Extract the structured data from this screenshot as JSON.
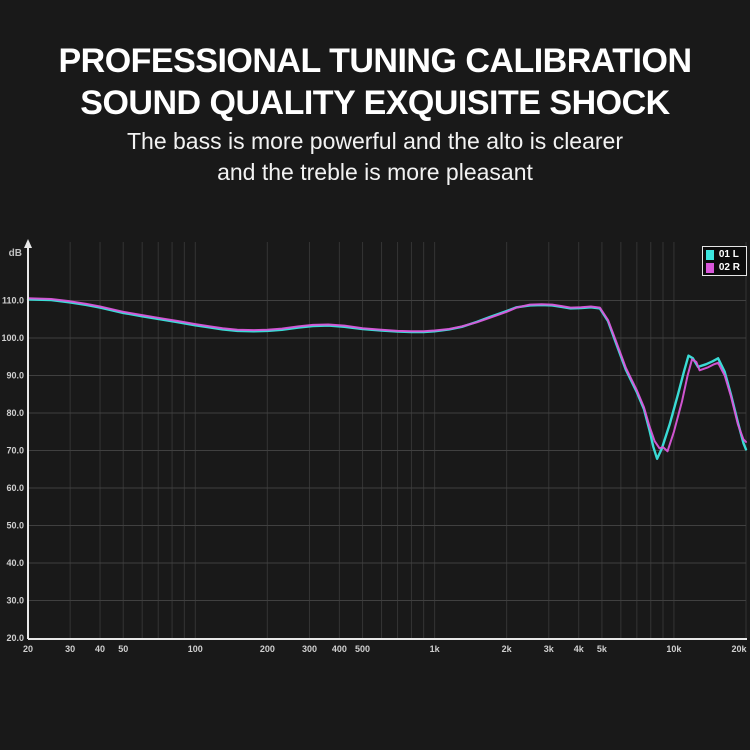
{
  "page": {
    "bg_color": "#191919",
    "title_line1": "PROFESSIONAL TUNING CALIBRATION",
    "title_line2": "SOUND QUALITY EXQUISITE SHOCK",
    "subtitle_line1": "The bass is more powerful and the alto is clearer",
    "subtitle_line2": "and the treble is more pleasant"
  },
  "chart_data": {
    "type": "line",
    "title": "",
    "y_axis_label": "dB",
    "x_scale": "log",
    "x_range": [
      20,
      20000
    ],
    "y_axis_range": [
      20,
      125
    ],
    "grid": true,
    "legend_position": "top-right",
    "axis_color": "#e8e8e8",
    "grid_color_h": "#404040",
    "grid_color_v": "#343434",
    "y_ticks": [
      {
        "value": 110,
        "label": "110.0"
      },
      {
        "value": 100,
        "label": "100.0"
      },
      {
        "value": 90,
        "label": "90.0"
      },
      {
        "value": 80,
        "label": "80.0"
      },
      {
        "value": 70,
        "label": "70.0"
      },
      {
        "value": 60,
        "label": "60.0"
      },
      {
        "value": 50,
        "label": "50.0"
      },
      {
        "value": 40,
        "label": "40.0"
      },
      {
        "value": 30,
        "label": "30.0"
      },
      {
        "value": 20,
        "label": "20.0"
      }
    ],
    "x_ticks": [
      {
        "value": 20,
        "label": "20"
      },
      {
        "value": 30,
        "label": "30"
      },
      {
        "value": 40,
        "label": "40"
      },
      {
        "value": 50,
        "label": "50"
      },
      {
        "value": 100,
        "label": "100"
      },
      {
        "value": 200,
        "label": "200"
      },
      {
        "value": 300,
        "label": "300"
      },
      {
        "value": 400,
        "label": "400"
      },
      {
        "value": 500,
        "label": "500"
      },
      {
        "value": 1000,
        "label": "1k"
      },
      {
        "value": 2000,
        "label": "2k"
      },
      {
        "value": 3000,
        "label": "3k"
      },
      {
        "value": 4000,
        "label": "4k"
      },
      {
        "value": 5000,
        "label": "5k"
      },
      {
        "value": 10000,
        "label": "10k"
      },
      {
        "value": 20000,
        "label": "20k"
      }
    ],
    "x_gridlines": [
      20,
      30,
      40,
      50,
      60,
      70,
      80,
      90,
      100,
      200,
      300,
      400,
      500,
      600,
      700,
      800,
      900,
      1000,
      2000,
      3000,
      4000,
      5000,
      6000,
      7000,
      8000,
      9000,
      10000,
      20000
    ],
    "series": [
      {
        "name": "01 L",
        "color": "#3ce6df",
        "points": [
          [
            20,
            110.3
          ],
          [
            25,
            110.1
          ],
          [
            30,
            109.5
          ],
          [
            35,
            108.8
          ],
          [
            40,
            108.1
          ],
          [
            50,
            106.7
          ],
          [
            60,
            105.8
          ],
          [
            70,
            105.1
          ],
          [
            85,
            104.2
          ],
          [
            100,
            103.4
          ],
          [
            115,
            102.8
          ],
          [
            130,
            102.3
          ],
          [
            150,
            101.9
          ],
          [
            175,
            101.8
          ],
          [
            200,
            101.9
          ],
          [
            230,
            102.2
          ],
          [
            270,
            102.8
          ],
          [
            310,
            103.2
          ],
          [
            360,
            103.3
          ],
          [
            420,
            103.0
          ],
          [
            500,
            102.4
          ],
          [
            600,
            102.0
          ],
          [
            700,
            101.7
          ],
          [
            800,
            101.6
          ],
          [
            900,
            101.6
          ],
          [
            1000,
            101.8
          ],
          [
            1150,
            102.3
          ],
          [
            1300,
            103.0
          ],
          [
            1500,
            104.3
          ],
          [
            1700,
            105.6
          ],
          [
            2000,
            107.2
          ],
          [
            2200,
            108.2
          ],
          [
            2500,
            108.7
          ],
          [
            2800,
            108.8
          ],
          [
            3100,
            108.7
          ],
          [
            3400,
            108.3
          ],
          [
            3700,
            107.9
          ],
          [
            4100,
            108.0
          ],
          [
            4500,
            108.2
          ],
          [
            4900,
            107.9
          ],
          [
            5300,
            104.5
          ],
          [
            5700,
            99.0
          ],
          [
            6300,
            91.5
          ],
          [
            7000,
            85.5
          ],
          [
            7500,
            81.0
          ],
          [
            7900,
            75.5
          ],
          [
            8200,
            71.0
          ],
          [
            8500,
            67.8
          ],
          [
            8900,
            70.5
          ],
          [
            9600,
            77.0
          ],
          [
            10400,
            85.0
          ],
          [
            11000,
            91.0
          ],
          [
            11500,
            95.3
          ],
          [
            12000,
            94.6
          ],
          [
            12600,
            92.3
          ],
          [
            13600,
            93.0
          ],
          [
            14500,
            93.8
          ],
          [
            15300,
            94.6
          ],
          [
            16300,
            91.0
          ],
          [
            17300,
            85.0
          ],
          [
            18500,
            77.5
          ],
          [
            19500,
            72.0
          ],
          [
            20000,
            70.3
          ]
        ]
      },
      {
        "name": "02 R",
        "color": "#d957da",
        "points": [
          [
            20,
            110.6
          ],
          [
            25,
            110.4
          ],
          [
            30,
            109.8
          ],
          [
            35,
            109.1
          ],
          [
            40,
            108.4
          ],
          [
            50,
            107.0
          ],
          [
            60,
            106.1
          ],
          [
            70,
            105.4
          ],
          [
            85,
            104.5
          ],
          [
            100,
            103.7
          ],
          [
            115,
            103.1
          ],
          [
            130,
            102.6
          ],
          [
            150,
            102.2
          ],
          [
            175,
            102.1
          ],
          [
            200,
            102.2
          ],
          [
            230,
            102.5
          ],
          [
            270,
            103.1
          ],
          [
            310,
            103.5
          ],
          [
            360,
            103.6
          ],
          [
            420,
            103.3
          ],
          [
            500,
            102.6
          ],
          [
            600,
            102.2
          ],
          [
            700,
            101.9
          ],
          [
            800,
            101.8
          ],
          [
            900,
            101.8
          ],
          [
            1000,
            102.0
          ],
          [
            1150,
            102.4
          ],
          [
            1300,
            103.1
          ],
          [
            1500,
            104.2
          ],
          [
            1700,
            105.4
          ],
          [
            2000,
            107.0
          ],
          [
            2200,
            108.1
          ],
          [
            2500,
            108.9
          ],
          [
            2800,
            109.0
          ],
          [
            3100,
            108.9
          ],
          [
            3400,
            108.5
          ],
          [
            3700,
            108.1
          ],
          [
            4100,
            108.2
          ],
          [
            4500,
            108.4
          ],
          [
            4900,
            108.1
          ],
          [
            5300,
            104.8
          ],
          [
            5700,
            99.5
          ],
          [
            6300,
            92.0
          ],
          [
            7000,
            86.0
          ],
          [
            7500,
            81.5
          ],
          [
            7900,
            76.5
          ],
          [
            8300,
            72.5
          ],
          [
            8700,
            70.6
          ],
          [
            9000,
            70.9
          ],
          [
            9400,
            69.8
          ],
          [
            10000,
            75.0
          ],
          [
            10800,
            83.0
          ],
          [
            11400,
            90.0
          ],
          [
            11900,
            94.3
          ],
          [
            12400,
            93.6
          ],
          [
            12800,
            91.4
          ],
          [
            13800,
            92.1
          ],
          [
            14600,
            92.9
          ],
          [
            15300,
            93.4
          ],
          [
            16300,
            90.0
          ],
          [
            17300,
            84.5
          ],
          [
            18500,
            77.0
          ],
          [
            19500,
            73.0
          ],
          [
            20000,
            72.3
          ]
        ]
      }
    ]
  }
}
